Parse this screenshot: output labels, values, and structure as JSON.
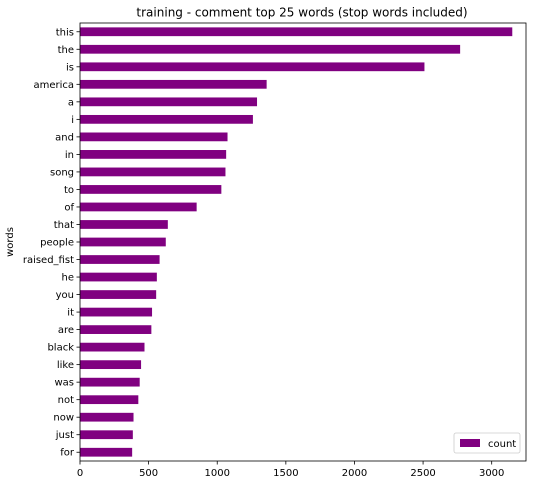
{
  "chart_data": {
    "type": "bar",
    "orientation": "horizontal",
    "title": "training - comment top 25 words (stop words included)",
    "xlabel": "",
    "ylabel": "words",
    "xlim": [
      0,
      3250
    ],
    "xticks": [
      0,
      500,
      1000,
      1500,
      2000,
      2500,
      3000
    ],
    "categories": [
      "this",
      "the",
      "is",
      "america",
      "a",
      "i",
      "and",
      "in",
      "song",
      "to",
      "of",
      "that",
      "people",
      "raised_fist",
      "he",
      "you",
      "it",
      "are",
      "black",
      "like",
      "was",
      "not",
      "now",
      "just",
      "for"
    ],
    "series": [
      {
        "name": "count",
        "color": "#800080",
        "values": [
          3150,
          2770,
          2510,
          1360,
          1290,
          1260,
          1075,
          1065,
          1060,
          1030,
          850,
          640,
          625,
          580,
          560,
          555,
          525,
          520,
          470,
          445,
          435,
          425,
          390,
          385,
          380
        ]
      }
    ],
    "legend_position": "bottom-right",
    "grid": false
  }
}
